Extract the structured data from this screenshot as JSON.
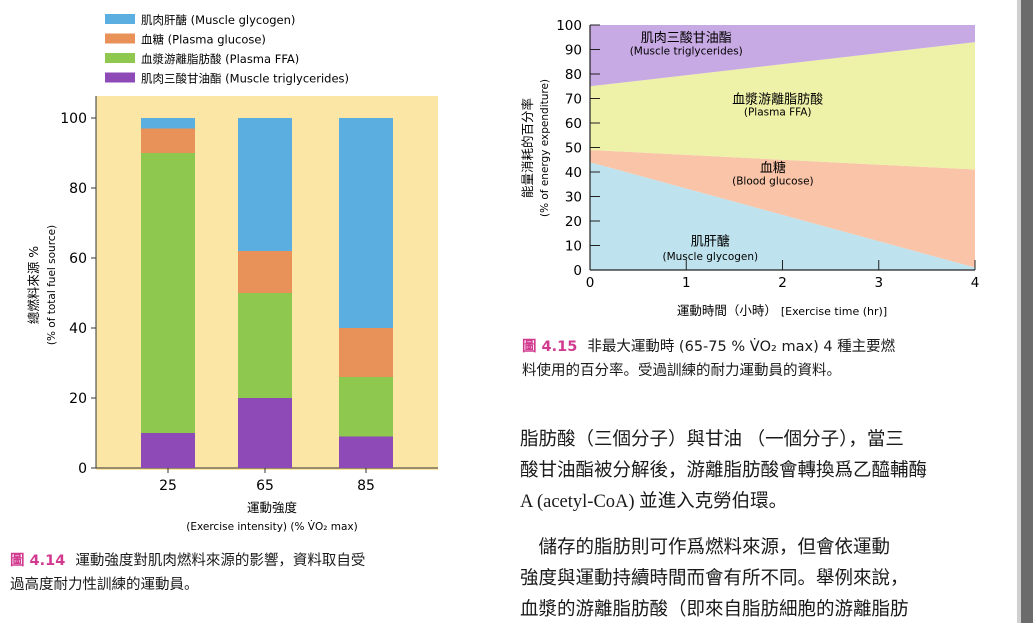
{
  "chart_data": [
    {
      "type": "bar",
      "stacked": true,
      "xlabel": "運動強度",
      "xlabel_en": "(Exercise intensity) (% V̇O₂ max)",
      "ylabel": "總燃料來源 %",
      "ylabel_en": "(% of total fuel source)",
      "ylim": [
        0,
        100
      ],
      "yticks": [
        0,
        20,
        40,
        60,
        80,
        100
      ],
      "categories": [
        "25",
        "65",
        "85"
      ],
      "legend_position": "top-left",
      "series": [
        {
          "name": "肌肉三酸甘油酯 (Muscle triglycerides)",
          "color": "#8e4bb8",
          "values": [
            10,
            20,
            9
          ]
        },
        {
          "name": "血漿游離脂肪酸 (Plasma FFA)",
          "color": "#8ec84e",
          "values": [
            80,
            30,
            17
          ]
        },
        {
          "name": "血糖 (Plasma glucose)",
          "color": "#e8925a",
          "values": [
            7,
            12,
            14
          ]
        },
        {
          "name": "肌肉肝醣 (Muscle glycogen)",
          "color": "#5aaee0",
          "values": [
            3,
            38,
            60
          ]
        }
      ],
      "legend_order": [
        3,
        2,
        1,
        0
      ],
      "background": "#fbe6a6"
    },
    {
      "type": "area",
      "stacked": true,
      "xlabel": "運動時間（小時）",
      "xlabel_en": "[Exercise time (hr)]",
      "ylabel": "能量消耗的百分率",
      "ylabel_en": "(% of energy expenditure)",
      "xlim": [
        0,
        4
      ],
      "ylim": [
        0,
        100
      ],
      "xticks": [
        0,
        1,
        2,
        3,
        4
      ],
      "yticks": [
        0,
        10,
        20,
        30,
        40,
        50,
        60,
        70,
        80,
        90,
        100
      ],
      "x": [
        0,
        4
      ],
      "series": [
        {
          "name": "肌肝醣",
          "name_en": "(Muscle glycogen)",
          "color": "#bfe3ee",
          "values": [
            44,
            1
          ]
        },
        {
          "name": "血糖",
          "name_en": "(Blood glucose)",
          "color": "#f9c4a7",
          "values": [
            5,
            40
          ]
        },
        {
          "name": "血漿游離脂肪酸",
          "name_en": "(Plasma FFA)",
          "color": "#eef1a8",
          "values": [
            26,
            52
          ]
        },
        {
          "name": "肌肉三酸甘油酯",
          "name_en": "(Muscle triglycerides)",
          "color": "#c7a9e3",
          "values": [
            25,
            7
          ]
        }
      ]
    }
  ],
  "captions": {
    "fig14_num": "圖 4.14",
    "fig14_line1": "運動強度對肌肉燃料來源的影響，資料取自受",
    "fig14_line2": "過高度耐力性訓練的運動員。",
    "fig15_num": "圖 4.15",
    "fig15_line1": "非最大運動時 (65-75 % V̇O₂ max) 4 種主要燃",
    "fig15_line2": "料使用的百分率。受過訓練的耐力運動員的資料。"
  },
  "body": {
    "p1_line1": "脂肪酸（三個分子）與甘油 （一個分子），當三",
    "p1_line2": "酸甘油酯被分解後，游離脂肪酸會轉換爲乙醯輔酶",
    "p1_line3": "A (acetyl-CoA) 並進入克勞伯環。",
    "p2_line1": "　儲存的脂肪則可作爲燃料來源，但會依運動",
    "p2_line2": "強度與運動持續時間而會有所不同。舉例來說，",
    "p2_line3": "血漿的游離脂肪酸（即來自脂肪細胞的游離脂肪"
  }
}
